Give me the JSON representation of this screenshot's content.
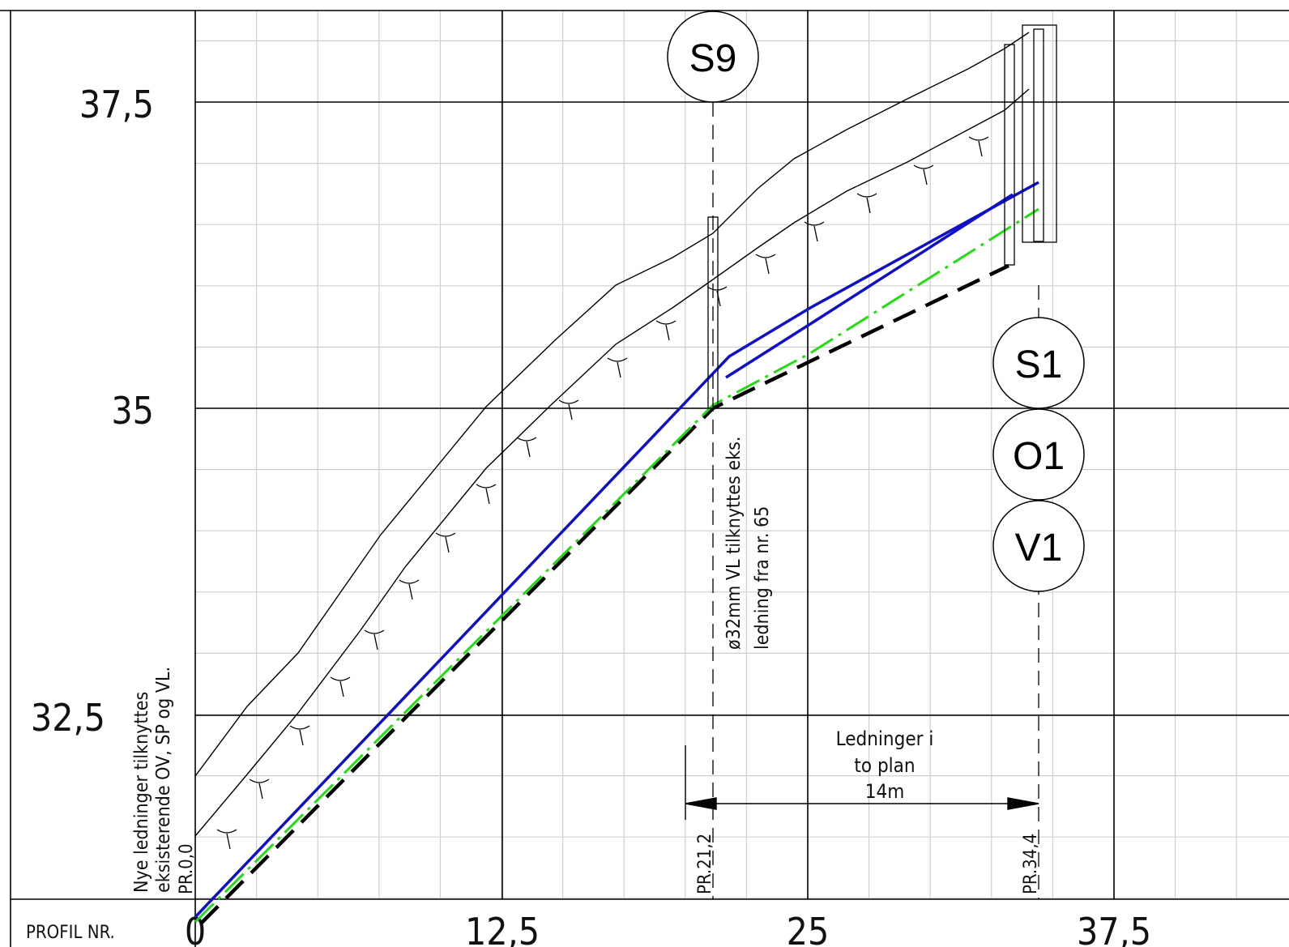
{
  "drawing": {
    "left_axis_ticks": [
      "37,5",
      "35",
      "32,5"
    ],
    "bottom_axis": {
      "label": "PROFIL NR.",
      "ticks": [
        "0",
        "12,5",
        "25",
        "37,5"
      ]
    },
    "stations": [
      "PR.0,0",
      "PR.21,2",
      "PR.34,4"
    ],
    "bubbles": {
      "top": "S9",
      "right": [
        "S1",
        "O1",
        "V1"
      ]
    },
    "notes": {
      "left_line1": "Nye ledninger tilknyttes",
      "left_line2": "eksisterende OV, SP og VL.",
      "mid_line1": "ø32mm VL tilknyttes eks.",
      "mid_line2": "ledning fra nr. 65"
    },
    "dimension": {
      "line1": "Ledninger i",
      "line2": "to plan",
      "line3": "14m"
    },
    "colors": {
      "pipe_blue": "#1010c8",
      "pipe_green": "#22dd11",
      "pipe_black_dashed": "#000000",
      "grid_minor": "#cfcfcf",
      "grid_major": "#000000"
    }
  }
}
